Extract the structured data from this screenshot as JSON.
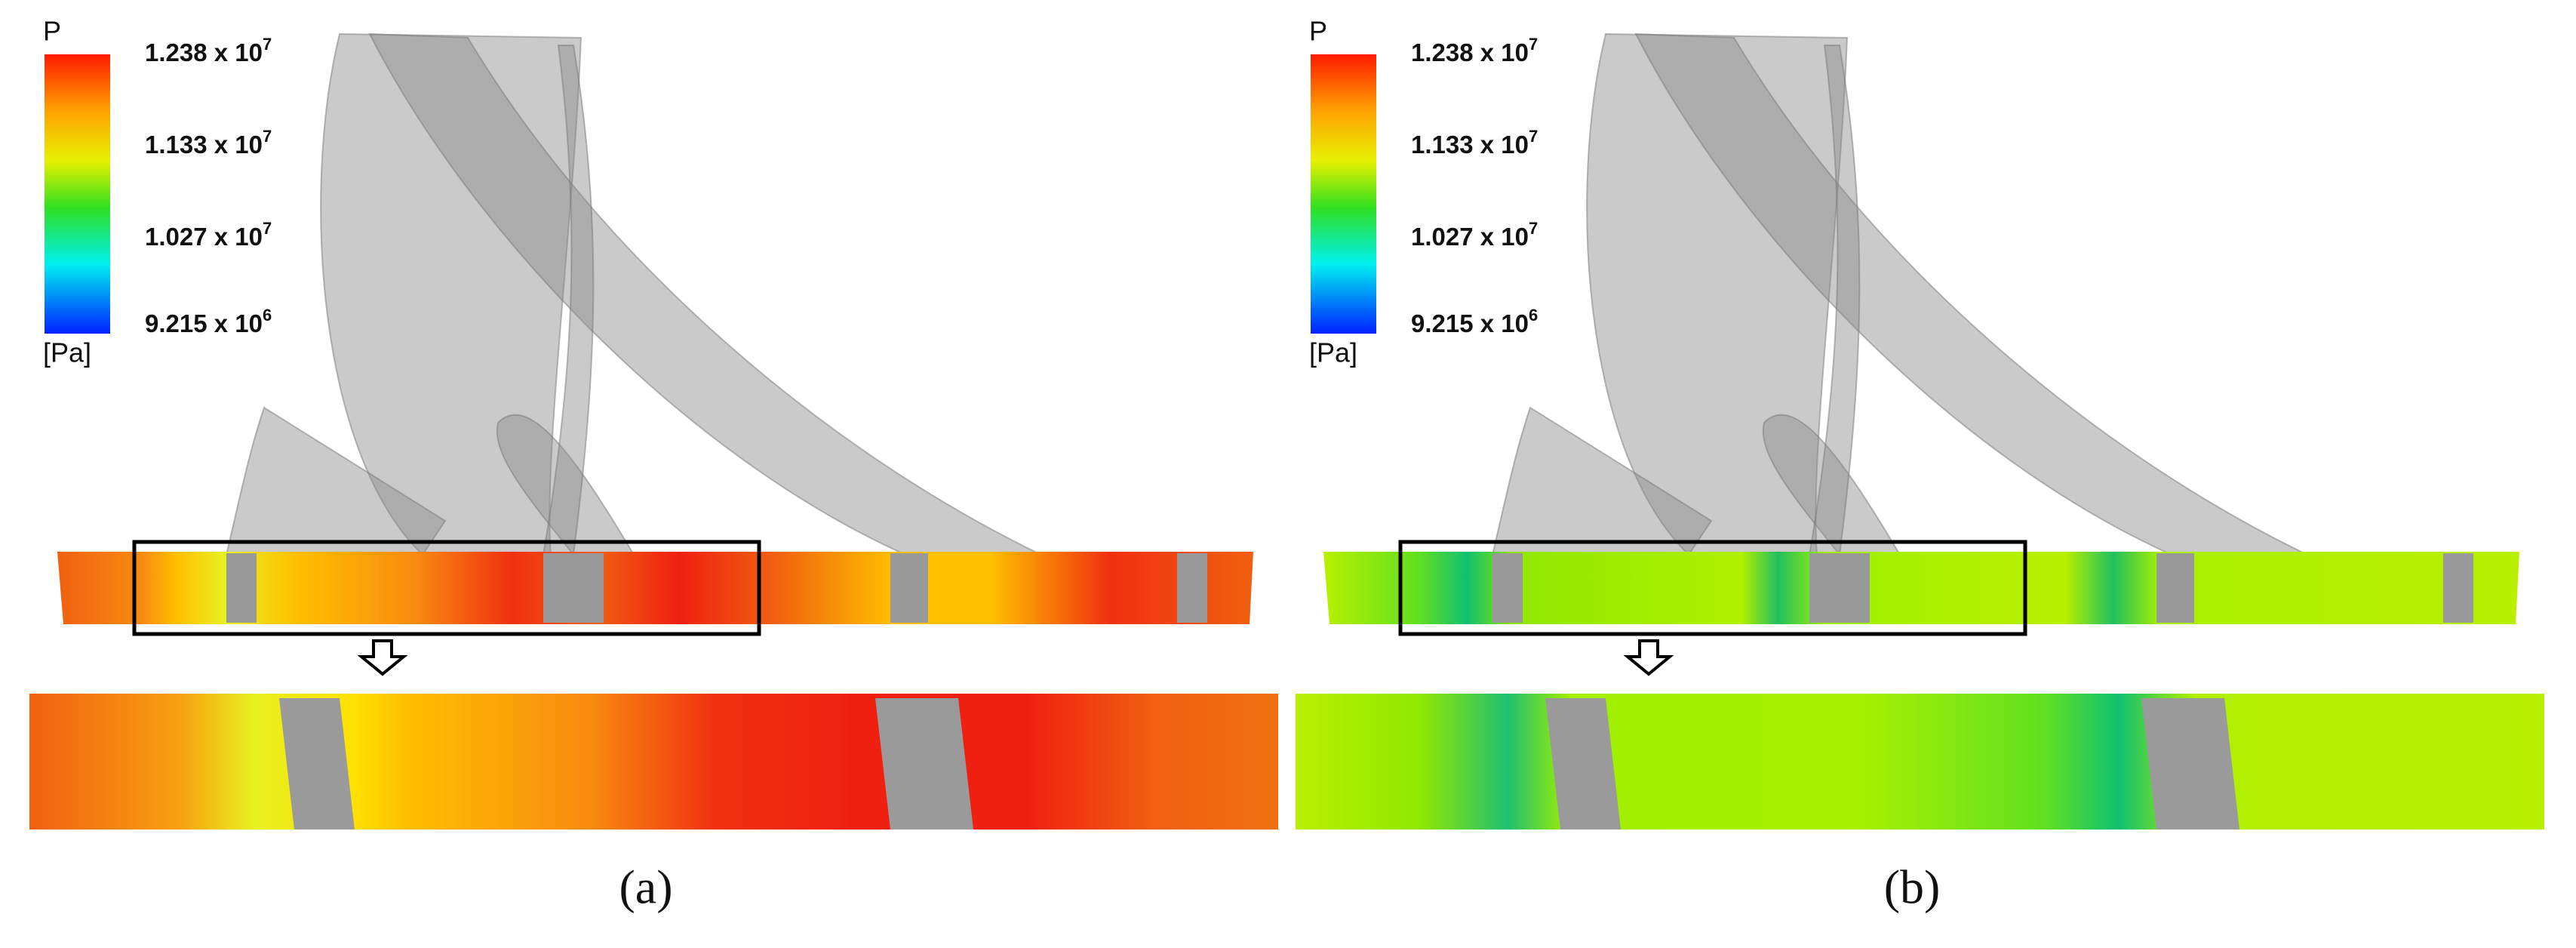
{
  "panels": [
    {
      "colorbar": {
        "title": "P",
        "unit": "[Pa]",
        "labels": [
          {
            "base": "1.238 x 10",
            "exp": "7"
          },
          {
            "base": "1.133 x 10",
            "exp": "7"
          },
          {
            "base": "1.027 x 10",
            "exp": "7"
          },
          {
            "base": "9.215 x 10",
            "exp": "6"
          }
        ]
      },
      "caption": "(a)"
    },
    {
      "colorbar": {
        "title": "P",
        "unit": "[Pa]",
        "labels": [
          {
            "base": "1.238 x 10",
            "exp": "7"
          },
          {
            "base": "1.133 x 10",
            "exp": "7"
          },
          {
            "base": "1.027 x 10",
            "exp": "7"
          },
          {
            "base": "9.215 x 10",
            "exp": "6"
          }
        ]
      },
      "caption": "(b)"
    }
  ]
}
